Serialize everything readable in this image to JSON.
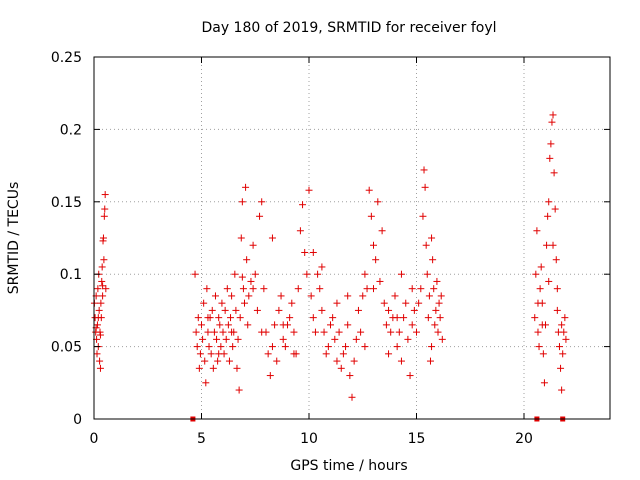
{
  "chart_data": {
    "type": "scatter",
    "title": "Day 180 of 2019, SRMTID for receiver foyl",
    "xlabel": "GPS time / hours",
    "ylabel": "SRMTID / TECUs",
    "xlim": [
      0,
      24
    ],
    "ylim": [
      0,
      0.25
    ],
    "xticks": [
      0,
      5,
      10,
      15,
      20
    ],
    "xtick_labels": [
      "0",
      "5",
      "10",
      "15",
      "20"
    ],
    "yticks": [
      0,
      0.05,
      0.1,
      0.15,
      0.2,
      0.25
    ],
    "ytick_labels": [
      "0",
      "0.05",
      "0.1",
      "0.15",
      "0.2",
      "0.25"
    ],
    "grid": true,
    "marker": "+",
    "color": "#e00000",
    "zero_flags_x": [
      4.6,
      20.6,
      21.8
    ],
    "points": [
      [
        0.02,
        0.08
      ],
      [
        0.05,
        0.07
      ],
      [
        0.08,
        0.06
      ],
      [
        0.1,
        0.085
      ],
      [
        0.12,
        0.055
      ],
      [
        0.14,
        0.045
      ],
      [
        0.16,
        0.065
      ],
      [
        0.18,
        0.09
      ],
      [
        0.2,
        0.05
      ],
      [
        0.22,
        0.1
      ],
      [
        0.24,
        0.075
      ],
      [
        0.26,
        0.04
      ],
      [
        0.28,
        0.06
      ],
      [
        0.3,
        0.035
      ],
      [
        0.32,
        0.08
      ],
      [
        0.34,
        0.07
      ],
      [
        0.36,
        0.095
      ],
      [
        0.38,
        0.105
      ],
      [
        0.4,
        0.085
      ],
      [
        0.42,
        0.123
      ],
      [
        0.44,
        0.125
      ],
      [
        0.46,
        0.11
      ],
      [
        0.48,
        0.14
      ],
      [
        0.5,
        0.145
      ],
      [
        0.52,
        0.155
      ],
      [
        0.55,
        0.09
      ],
      [
        0.1,
        0.063
      ],
      [
        0.2,
        0.07
      ],
      [
        0.3,
        0.058
      ],
      [
        0.4,
        0.092
      ],
      [
        4.7,
        0.1
      ],
      [
        4.75,
        0.06
      ],
      [
        4.8,
        0.05
      ],
      [
        4.85,
        0.07
      ],
      [
        4.9,
        0.035
      ],
      [
        4.95,
        0.045
      ],
      [
        5.0,
        0.065
      ],
      [
        5.05,
        0.055
      ],
      [
        5.1,
        0.08
      ],
      [
        5.15,
        0.04
      ],
      [
        5.2,
        0.025
      ],
      [
        5.25,
        0.09
      ],
      [
        5.3,
        0.06
      ],
      [
        5.35,
        0.05
      ],
      [
        5.4,
        0.07
      ],
      [
        5.45,
        0.045
      ],
      [
        5.5,
        0.075
      ],
      [
        5.55,
        0.035
      ],
      [
        5.6,
        0.06
      ],
      [
        5.65,
        0.085
      ],
      [
        5.7,
        0.055
      ],
      [
        5.75,
        0.04
      ],
      [
        5.8,
        0.07
      ],
      [
        5.85,
        0.065
      ],
      [
        5.9,
        0.05
      ],
      [
        5.95,
        0.08
      ],
      [
        6.0,
        0.06
      ],
      [
        6.05,
        0.045
      ],
      [
        6.1,
        0.075
      ],
      [
        6.15,
        0.055
      ],
      [
        6.2,
        0.09
      ],
      [
        6.25,
        0.065
      ],
      [
        6.3,
        0.04
      ],
      [
        6.35,
        0.07
      ],
      [
        6.4,
        0.085
      ],
      [
        6.45,
        0.05
      ],
      [
        6.5,
        0.06
      ],
      [
        6.55,
        0.1
      ],
      [
        6.6,
        0.075
      ],
      [
        6.65,
        0.035
      ],
      [
        6.7,
        0.055
      ],
      [
        6.75,
        0.02
      ],
      [
        6.8,
        0.07
      ],
      [
        6.85,
        0.125
      ],
      [
        6.9,
        0.15
      ],
      [
        6.95,
        0.09
      ],
      [
        7.0,
        0.08
      ],
      [
        7.05,
        0.16
      ],
      [
        7.1,
        0.11
      ],
      [
        7.15,
        0.065
      ],
      [
        7.2,
        0.085
      ],
      [
        7.3,
        0.095
      ],
      [
        7.4,
        0.12
      ],
      [
        7.5,
        0.1
      ],
      [
        7.6,
        0.075
      ],
      [
        7.7,
        0.14
      ],
      [
        7.8,
        0.15
      ],
      [
        7.9,
        0.09
      ],
      [
        8.0,
        0.06
      ],
      [
        8.1,
        0.045
      ],
      [
        8.2,
        0.03
      ],
      [
        8.3,
        0.05
      ],
      [
        8.4,
        0.065
      ],
      [
        8.5,
        0.04
      ],
      [
        8.6,
        0.075
      ],
      [
        8.7,
        0.085
      ],
      [
        8.8,
        0.055
      ],
      [
        8.9,
        0.05
      ],
      [
        9.0,
        0.065
      ],
      [
        9.1,
        0.07
      ],
      [
        9.2,
        0.08
      ],
      [
        9.3,
        0.06
      ],
      [
        9.4,
        0.045
      ],
      [
        9.5,
        0.09
      ],
      [
        9.6,
        0.13
      ],
      [
        9.7,
        0.148
      ],
      [
        9.8,
        0.115
      ],
      [
        9.9,
        0.1
      ],
      [
        10.0,
        0.158
      ],
      [
        10.1,
        0.085
      ],
      [
        10.2,
        0.07
      ],
      [
        10.3,
        0.06
      ],
      [
        10.4,
        0.1
      ],
      [
        10.5,
        0.09
      ],
      [
        10.6,
        0.075
      ],
      [
        10.7,
        0.06
      ],
      [
        10.8,
        0.045
      ],
      [
        10.9,
        0.05
      ],
      [
        11.0,
        0.065
      ],
      [
        11.1,
        0.07
      ],
      [
        11.2,
        0.055
      ],
      [
        11.3,
        0.08
      ],
      [
        11.4,
        0.06
      ],
      [
        11.5,
        0.035
      ],
      [
        11.6,
        0.045
      ],
      [
        11.7,
        0.05
      ],
      [
        11.8,
        0.065
      ],
      [
        11.9,
        0.03
      ],
      [
        12.0,
        0.015
      ],
      [
        12.1,
        0.04
      ],
      [
        12.2,
        0.055
      ],
      [
        12.3,
        0.075
      ],
      [
        12.4,
        0.06
      ],
      [
        12.5,
        0.085
      ],
      [
        12.6,
        0.1
      ],
      [
        12.7,
        0.09
      ],
      [
        12.8,
        0.158
      ],
      [
        12.9,
        0.14
      ],
      [
        13.0,
        0.12
      ],
      [
        13.1,
        0.11
      ],
      [
        13.2,
        0.15
      ],
      [
        13.3,
        0.095
      ],
      [
        13.4,
        0.13
      ],
      [
        13.5,
        0.08
      ],
      [
        13.6,
        0.065
      ],
      [
        13.7,
        0.075
      ],
      [
        13.8,
        0.06
      ],
      [
        13.9,
        0.07
      ],
      [
        14.0,
        0.085
      ],
      [
        14.1,
        0.05
      ],
      [
        14.2,
        0.06
      ],
      [
        14.3,
        0.04
      ],
      [
        14.4,
        0.07
      ],
      [
        14.5,
        0.08
      ],
      [
        14.6,
        0.055
      ],
      [
        14.7,
        0.03
      ],
      [
        14.8,
        0.065
      ],
      [
        14.9,
        0.075
      ],
      [
        15.0,
        0.06
      ],
      [
        15.1,
        0.08
      ],
      [
        15.2,
        0.09
      ],
      [
        15.3,
        0.14
      ],
      [
        15.35,
        0.172
      ],
      [
        15.4,
        0.16
      ],
      [
        15.45,
        0.12
      ],
      [
        15.5,
        0.1
      ],
      [
        15.55,
        0.07
      ],
      [
        15.6,
        0.085
      ],
      [
        15.65,
        0.04
      ],
      [
        15.7,
        0.05
      ],
      [
        15.75,
        0.11
      ],
      [
        15.8,
        0.09
      ],
      [
        15.85,
        0.065
      ],
      [
        15.9,
        0.075
      ],
      [
        15.95,
        0.095
      ],
      [
        16.0,
        0.06
      ],
      [
        16.05,
        0.08
      ],
      [
        16.1,
        0.07
      ],
      [
        16.15,
        0.085
      ],
      [
        16.2,
        0.055
      ],
      [
        6.9,
        0.098
      ],
      [
        7.4,
        0.09
      ],
      [
        8.3,
        0.125
      ],
      [
        8.8,
        0.065
      ],
      [
        10.2,
        0.115
      ],
      [
        10.6,
        0.105
      ],
      [
        11.8,
        0.085
      ],
      [
        13.0,
        0.09
      ],
      [
        14.3,
        0.1
      ],
      [
        14.8,
        0.09
      ],
      [
        15.7,
        0.125
      ],
      [
        5.3,
        0.07
      ],
      [
        5.8,
        0.045
      ],
      [
        6.4,
        0.06
      ],
      [
        7.8,
        0.06
      ],
      [
        9.3,
        0.045
      ],
      [
        11.3,
        0.04
      ],
      [
        12.6,
        0.05
      ],
      [
        13.7,
        0.045
      ],
      [
        14.1,
        0.07
      ],
      [
        20.5,
        0.07
      ],
      [
        20.55,
        0.1
      ],
      [
        20.6,
        0.13
      ],
      [
        20.65,
        0.06
      ],
      [
        20.7,
        0.05
      ],
      [
        20.75,
        0.09
      ],
      [
        20.8,
        0.105
      ],
      [
        20.85,
        0.08
      ],
      [
        20.9,
        0.045
      ],
      [
        20.95,
        0.025
      ],
      [
        21.0,
        0.065
      ],
      [
        21.05,
        0.12
      ],
      [
        21.1,
        0.14
      ],
      [
        21.15,
        0.15
      ],
      [
        21.2,
        0.18
      ],
      [
        21.25,
        0.19
      ],
      [
        21.3,
        0.205
      ],
      [
        21.35,
        0.21
      ],
      [
        21.4,
        0.17
      ],
      [
        21.45,
        0.145
      ],
      [
        21.5,
        0.11
      ],
      [
        21.55,
        0.09
      ],
      [
        21.6,
        0.06
      ],
      [
        21.65,
        0.05
      ],
      [
        21.7,
        0.035
      ],
      [
        21.75,
        0.02
      ],
      [
        21.8,
        0.045
      ],
      [
        21.85,
        0.06
      ],
      [
        21.9,
        0.07
      ],
      [
        21.95,
        0.055
      ],
      [
        20.65,
        0.08
      ],
      [
        20.85,
        0.065
      ],
      [
        21.15,
        0.095
      ],
      [
        21.35,
        0.12
      ],
      [
        21.55,
        0.075
      ],
      [
        21.75,
        0.065
      ]
    ]
  }
}
